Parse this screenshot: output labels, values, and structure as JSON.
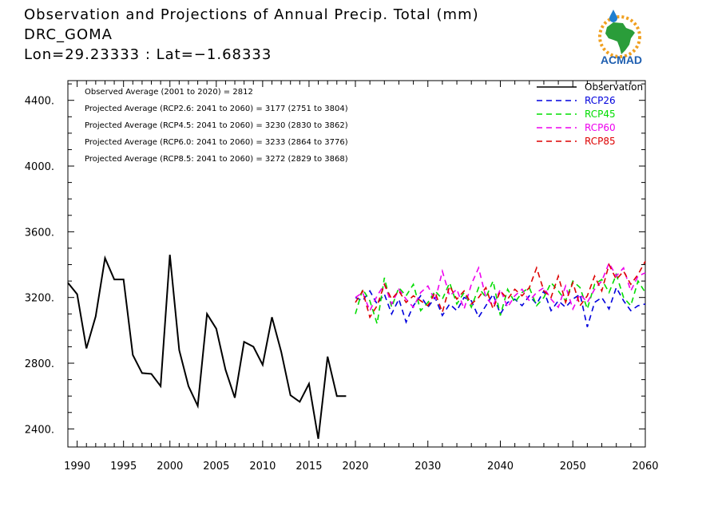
{
  "header": {
    "title": "Observation and Projections of Annual Precip. Total (mm)",
    "subtitle": "DRC_GOMA",
    "location": "Lon=29.23333 : Lat=−1.68333"
  },
  "logo": {
    "text": "ACMAD",
    "icon": "acmad-africa-logo"
  },
  "colors": {
    "observation": "#000000",
    "rcp26": "#0000dd",
    "rcp45": "#00dd00",
    "rcp60": "#ee00ee",
    "rcp85": "#dd0000"
  },
  "chart_data": {
    "type": "line",
    "title": "Observation and Projections of Annual Precip. Total (mm)",
    "xlabel": "",
    "ylabel": "",
    "xlim": [
      1989,
      2060
    ],
    "ylim": [
      2290,
      4520
    ],
    "x_ticks": [
      1990,
      1995,
      2000,
      2005,
      2010,
      2015,
      2020,
      2030,
      2040,
      2050,
      2060
    ],
    "y_ticks": [
      2400,
      2800,
      3200,
      3600,
      4000,
      4400
    ],
    "y_tick_labels": [
      "2400.",
      "2800.",
      "3200.",
      "3600.",
      "4000.",
      "4400."
    ],
    "grid": false,
    "legend_position": "top-right",
    "annotations": [
      "Observed Average (2001 to 2020) = 2812",
      "Projected Average (RCP2.6: 2041 to 2060) = 3177 (2751 to 3804)",
      "Projected Average (RCP4.5: 2041 to 2060) = 3230 (2830 to 3862)",
      "Projected Average (RCP6.0: 2041 to 2060) = 3233 (2864 to 3776)",
      "Projected Average (RCP8.5: 2041 to 2060) = 3272 (2829 to 3868)"
    ],
    "series": [
      {
        "name": "Observation",
        "style": "solid",
        "x": [
          1989,
          1990,
          1991,
          1992,
          1993,
          1994,
          1995,
          1996,
          1997,
          1998,
          1999,
          2000,
          2001,
          2002,
          2003,
          2004,
          2005,
          2006,
          2007,
          2008,
          2009,
          2010,
          2011,
          2012,
          2013,
          2014,
          2015,
          2016,
          2017,
          2018,
          2019
        ],
        "values": [
          3290,
          3220,
          2890,
          3085,
          3440,
          3310,
          3310,
          2850,
          2740,
          2735,
          2660,
          3460,
          2880,
          2660,
          2540,
          3100,
          3010,
          2760,
          2590,
          2930,
          2900,
          2790,
          3080,
          2870,
          2605,
          2565,
          2675,
          2340,
          2840,
          2600,
          2600
        ]
      },
      {
        "name": "RCP26",
        "style": "dashed",
        "x": [
          2020,
          2021,
          2022,
          2023,
          2024,
          2025,
          2026,
          2027,
          2028,
          2029,
          2030,
          2031,
          2032,
          2033,
          2034,
          2035,
          2036,
          2037,
          2038,
          2039,
          2040,
          2041,
          2042,
          2043,
          2044,
          2045,
          2046,
          2047,
          2048,
          2049,
          2050,
          2051,
          2052,
          2053,
          2054,
          2055,
          2056,
          2057,
          2058,
          2059,
          2060
        ],
        "values": [
          3200,
          3180,
          3240,
          3160,
          3220,
          3100,
          3190,
          3050,
          3150,
          3210,
          3140,
          3200,
          3090,
          3160,
          3120,
          3200,
          3180,
          3080,
          3150,
          3220,
          3100,
          3170,
          3190,
          3150,
          3210,
          3160,
          3240,
          3120,
          3180,
          3140,
          3190,
          3220,
          3020,
          3170,
          3200,
          3130,
          3260,
          3180,
          3120,
          3150,
          3160
        ]
      },
      {
        "name": "RCP45",
        "style": "dashed",
        "x": [
          2020,
          2021,
          2022,
          2023,
          2024,
          2025,
          2026,
          2027,
          2028,
          2029,
          2030,
          2031,
          2032,
          2033,
          2034,
          2035,
          2036,
          2037,
          2038,
          2039,
          2040,
          2041,
          2042,
          2043,
          2044,
          2045,
          2046,
          2047,
          2048,
          2049,
          2050,
          2051,
          2052,
          2053,
          2054,
          2055,
          2056,
          2057,
          2058,
          2059,
          2060
        ],
        "values": [
          3100,
          3250,
          3180,
          3040,
          3320,
          3140,
          3260,
          3210,
          3280,
          3120,
          3170,
          3240,
          3190,
          3290,
          3160,
          3230,
          3140,
          3260,
          3200,
          3300,
          3090,
          3250,
          3170,
          3230,
          3260,
          3150,
          3200,
          3290,
          3240,
          3180,
          3300,
          3260,
          3130,
          3280,
          3310,
          3230,
          3340,
          3200,
          3150,
          3300,
          3230
        ]
      },
      {
        "name": "RCP60",
        "style": "dashed",
        "x": [
          2020,
          2021,
          2022,
          2023,
          2024,
          2025,
          2026,
          2027,
          2028,
          2029,
          2030,
          2031,
          2032,
          2033,
          2034,
          2035,
          2036,
          2037,
          2038,
          2039,
          2040,
          2041,
          2042,
          2043,
          2044,
          2045,
          2046,
          2047,
          2048,
          2049,
          2050,
          2051,
          2052,
          2053,
          2054,
          2055,
          2056,
          2057,
          2058,
          2059,
          2060
        ],
        "values": [
          3200,
          3230,
          3120,
          3210,
          3280,
          3160,
          3250,
          3190,
          3140,
          3230,
          3270,
          3180,
          3360,
          3210,
          3250,
          3130,
          3280,
          3380,
          3200,
          3150,
          3250,
          3140,
          3210,
          3250,
          3180,
          3230,
          3260,
          3190,
          3140,
          3270,
          3130,
          3220,
          3170,
          3250,
          3300,
          3410,
          3330,
          3380,
          3240,
          3330,
          3350
        ]
      },
      {
        "name": "RCP85",
        "style": "dashed",
        "x": [
          2020,
          2021,
          2022,
          2023,
          2024,
          2025,
          2026,
          2027,
          2028,
          2029,
          2030,
          2031,
          2032,
          2033,
          2034,
          2035,
          2036,
          2037,
          2038,
          2039,
          2040,
          2041,
          2042,
          2043,
          2044,
          2045,
          2046,
          2047,
          2048,
          2049,
          2050,
          2051,
          2052,
          2053,
          2054,
          2055,
          2056,
          2057,
          2058,
          2059,
          2060
        ],
        "values": [
          3170,
          3240,
          3080,
          3150,
          3280,
          3190,
          3240,
          3170,
          3210,
          3180,
          3150,
          3230,
          3110,
          3270,
          3190,
          3240,
          3160,
          3200,
          3260,
          3130,
          3240,
          3190,
          3250,
          3210,
          3260,
          3380,
          3240,
          3200,
          3330,
          3170,
          3290,
          3150,
          3210,
          3330,
          3240,
          3400,
          3310,
          3360,
          3280,
          3340,
          3420
        ]
      }
    ]
  }
}
